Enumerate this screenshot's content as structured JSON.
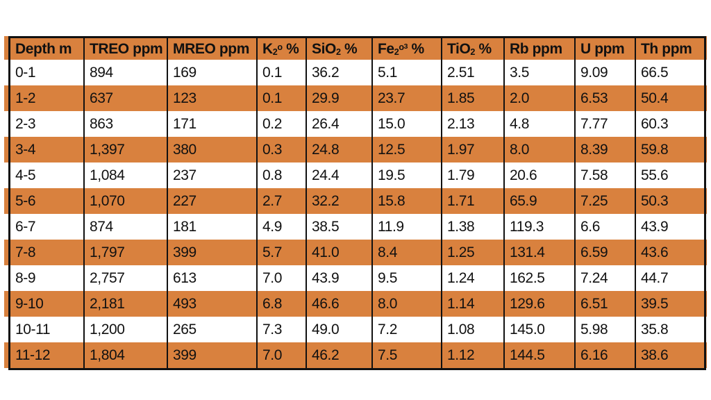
{
  "colors": {
    "stripe_orange": "#D9813E",
    "border_black": "#111111",
    "row_white": "#FFFFFF",
    "text_black": "#111111"
  },
  "table": {
    "columns": [
      {
        "id": "depth",
        "label": [
          {
            "t": "Depth m"
          }
        ]
      },
      {
        "id": "treo",
        "label": [
          {
            "t": "TREO ppm"
          }
        ]
      },
      {
        "id": "mreo",
        "label": [
          {
            "t": "MREO ppm"
          }
        ]
      },
      {
        "id": "k2o",
        "label": [
          {
            "t": "K"
          },
          {
            "t": "2",
            "v": "sub"
          },
          {
            "t": "o",
            "v": "sup"
          },
          {
            "t": " %"
          }
        ]
      },
      {
        "id": "sio2",
        "label": [
          {
            "t": "SiO"
          },
          {
            "t": "2",
            "v": "sub"
          },
          {
            "t": " %"
          }
        ]
      },
      {
        "id": "fe2o3",
        "label": [
          {
            "t": "Fe"
          },
          {
            "t": "2",
            "v": "sub"
          },
          {
            "t": "o",
            "v": "sup"
          },
          {
            "t": "3",
            "v": "sup2"
          },
          {
            "t": " %"
          }
        ]
      },
      {
        "id": "tio2",
        "label": [
          {
            "t": "TiO"
          },
          {
            "t": "2",
            "v": "sub"
          },
          {
            "t": " %"
          }
        ]
      },
      {
        "id": "rb",
        "label": [
          {
            "t": "Rb ppm"
          }
        ]
      },
      {
        "id": "u",
        "label": [
          {
            "t": "U ppm"
          }
        ]
      },
      {
        "id": "th",
        "label": [
          {
            "t": "Th ppm"
          }
        ]
      }
    ],
    "rows": [
      [
        "0-1",
        "894",
        "169",
        "0.1",
        "36.2",
        "5.1",
        "2.51",
        "3.5",
        "9.09",
        "66.5"
      ],
      [
        "1-2",
        "637",
        "123",
        "0.1",
        "29.9",
        "23.7",
        "1.85",
        "2.0",
        "6.53",
        "50.4"
      ],
      [
        "2-3",
        "863",
        "171",
        "0.2",
        "26.4",
        "15.0",
        "2.13",
        "4.8",
        "7.77",
        "60.3"
      ],
      [
        "3-4",
        "1,397",
        "380",
        "0.3",
        "24.8",
        "12.5",
        "1.97",
        "8.0",
        "8.39",
        "59.8"
      ],
      [
        "4-5",
        "1,084",
        "237",
        "0.8",
        "24.4",
        "19.5",
        "1.79",
        "20.6",
        "7.58",
        "55.6"
      ],
      [
        "5-6",
        "1,070",
        "227",
        "2.7",
        "32.2",
        "15.8",
        "1.71",
        "65.9",
        "7.25",
        "50.3"
      ],
      [
        "6-7",
        "874",
        "181",
        "4.9",
        "38.5",
        "11.9",
        "1.38",
        "119.3",
        "6.6",
        "43.9"
      ],
      [
        "7-8",
        "1,797",
        "399",
        "5.7",
        "41.0",
        "8.4",
        "1.25",
        "131.4",
        "6.59",
        "43.6"
      ],
      [
        "8-9",
        "2,757",
        "613",
        "7.0",
        "43.9",
        "9.5",
        "1.24",
        "162.5",
        "7.24",
        "44.7"
      ],
      [
        "9-10",
        "2,181",
        "493",
        "6.8",
        "46.6",
        "8.0",
        "1.14",
        "129.6",
        "6.51",
        "39.5"
      ],
      [
        "10-11",
        "1,200",
        "265",
        "7.3",
        "49.0",
        "7.2",
        "1.08",
        "145.0",
        "5.98",
        "35.8"
      ],
      [
        "11-12",
        "1,804",
        "399",
        "7.0",
        "46.2",
        "7.5",
        "1.12",
        "144.5",
        "6.16",
        "38.6"
      ]
    ]
  },
  "chart_data": {
    "type": "table",
    "title": "",
    "columns": [
      "Depth m",
      "TREO ppm",
      "MREO ppm",
      "K2o %",
      "SiO2 %",
      "Fe2o3 %",
      "TiO2 %",
      "Rb ppm",
      "U ppm",
      "Th ppm"
    ],
    "rows": [
      [
        "0-1",
        "894",
        "169",
        "0.1",
        "36.2",
        "5.1",
        "2.51",
        "3.5",
        "9.09",
        "66.5"
      ],
      [
        "1-2",
        "637",
        "123",
        "0.1",
        "29.9",
        "23.7",
        "1.85",
        "2.0",
        "6.53",
        "50.4"
      ],
      [
        "2-3",
        "863",
        "171",
        "0.2",
        "26.4",
        "15.0",
        "2.13",
        "4.8",
        "7.77",
        "60.3"
      ],
      [
        "3-4",
        "1,397",
        "380",
        "0.3",
        "24.8",
        "12.5",
        "1.97",
        "8.0",
        "8.39",
        "59.8"
      ],
      [
        "4-5",
        "1,084",
        "237",
        "0.8",
        "24.4",
        "19.5",
        "1.79",
        "20.6",
        "7.58",
        "55.6"
      ],
      [
        "5-6",
        "1,070",
        "227",
        "2.7",
        "32.2",
        "15.8",
        "1.71",
        "65.9",
        "7.25",
        "50.3"
      ],
      [
        "6-7",
        "874",
        "181",
        "4.9",
        "38.5",
        "11.9",
        "1.38",
        "119.3",
        "6.6",
        "43.9"
      ],
      [
        "7-8",
        "1,797",
        "399",
        "5.7",
        "41.0",
        "8.4",
        "1.25",
        "131.4",
        "6.59",
        "43.6"
      ],
      [
        "8-9",
        "2,757",
        "613",
        "7.0",
        "43.9",
        "9.5",
        "1.24",
        "162.5",
        "7.24",
        "44.7"
      ],
      [
        "9-10",
        "2,181",
        "493",
        "6.8",
        "46.6",
        "8.0",
        "1.14",
        "129.6",
        "6.51",
        "39.5"
      ],
      [
        "10-11",
        "1,200",
        "265",
        "7.3",
        "49.0",
        "7.2",
        "1.08",
        "145.0",
        "5.98",
        "35.8"
      ],
      [
        "11-12",
        "1,804",
        "399",
        "7.0",
        "46.2",
        "7.5",
        "1.12",
        "144.5",
        "6.16",
        "38.6"
      ]
    ],
    "layout_hints": {
      "header_fill": "#D9813E",
      "alternating_row_fill": [
        "#FFFFFF",
        "#D9813E"
      ],
      "grid": "vertical-only",
      "outer_border": "3px black"
    }
  }
}
